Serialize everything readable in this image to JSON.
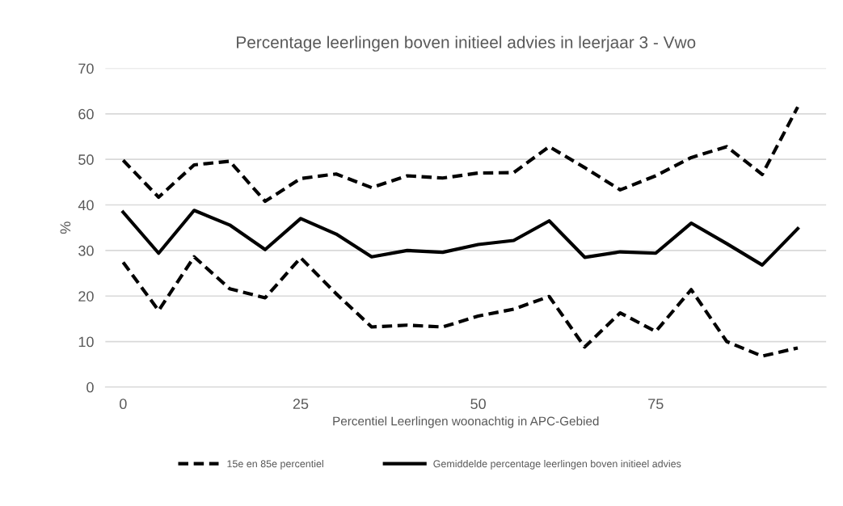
{
  "chart_data": {
    "type": "line",
    "title": "Percentage leerlingen boven initieel advies in leerjaar 3 - Vwo",
    "xlabel": "Percentiel Leerlingen woonachtig in APC-Gebied",
    "ylabel": "%",
    "x": [
      0,
      5,
      10,
      15,
      20,
      25,
      30,
      35,
      40,
      45,
      50,
      55,
      60,
      65,
      70,
      75,
      80,
      85,
      90,
      95
    ],
    "series": [
      {
        "name": "15e en 85e percentiel",
        "color": "#000000",
        "line_style": "dashed",
        "values": [
          27.4,
          16.8,
          28.6,
          21.6,
          19.6,
          28.4,
          20.5,
          13.2,
          13.6,
          13.2,
          15.6,
          17.1,
          19.9,
          8.8,
          16.3,
          12.2,
          21.4,
          10.0,
          6.8,
          8.6
        ]
      },
      {
        "color": "#000000",
        "line_style": "dashed",
        "values": [
          49.8,
          41.7,
          48.8,
          49.6,
          40.8,
          45.8,
          46.8,
          43.8,
          46.4,
          45.9,
          47.0,
          47.1,
          52.8,
          48.2,
          43.3,
          46.4,
          50.4,
          52.8,
          46.7,
          61.5
        ]
      },
      {
        "name": "Gemiddelde percentage leerlingen boven initieel advies",
        "color": "#000000",
        "line_style": "solid",
        "values": [
          38.4,
          29.4,
          38.8,
          35.6,
          30.2,
          37.0,
          33.6,
          28.6,
          30.0,
          29.6,
          31.3,
          32.2,
          36.5,
          28.5,
          29.7,
          29.4,
          36.0,
          31.5,
          26.8,
          34.8
        ]
      }
    ],
    "xlim": [
      -2.5,
      99
    ],
    "xticks": [
      0,
      25,
      50,
      75
    ],
    "ylim": [
      0,
      70
    ],
    "yticks": [
      0,
      10,
      20,
      30,
      40,
      50,
      60,
      70
    ],
    "grid": "y",
    "legend": "bottom",
    "marker": "none"
  }
}
